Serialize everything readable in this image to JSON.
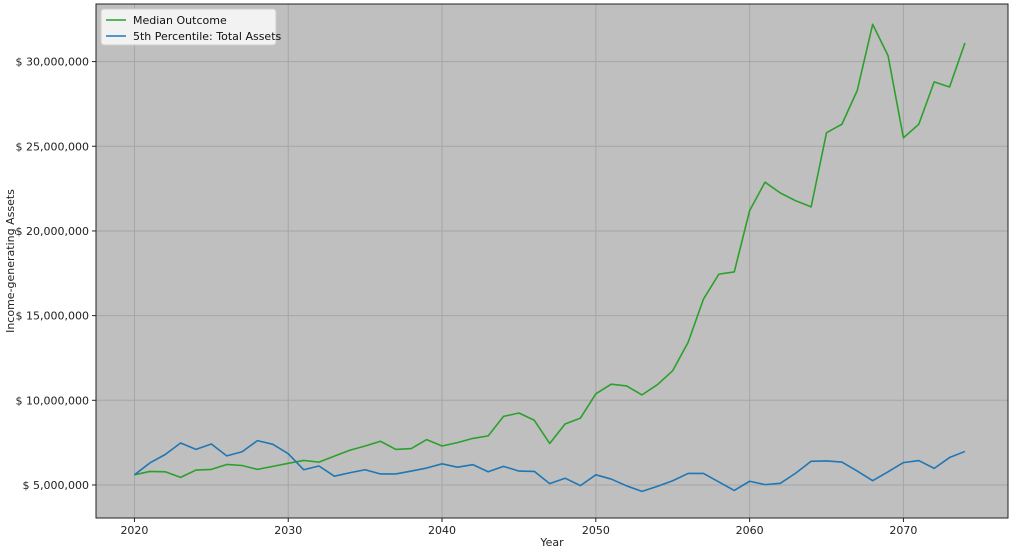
{
  "chart_data": {
    "type": "line",
    "title": "",
    "xlabel": "Year",
    "ylabel": "Income-generating Assets",
    "xlim": [
      2017.5,
      2076.8
    ],
    "ylim": [
      3050000,
      33400000
    ],
    "xticks": [
      2020,
      2030,
      2040,
      2050,
      2060,
      2070
    ],
    "xtick_labels": [
      "2020",
      "2030",
      "2040",
      "2050",
      "2060",
      "2070"
    ],
    "yticks": [
      5000000,
      10000000,
      15000000,
      20000000,
      25000000,
      30000000
    ],
    "ytick_labels": [
      "$ 5,000,000",
      "$ 10,000,000",
      "$ 15,000,000",
      "$ 20,000,000",
      "$ 25,000,000",
      "$ 30,000,000"
    ],
    "grid": true,
    "legend_position": "top-left",
    "background_color": "#bfbfbf",
    "x": [
      2020,
      2021,
      2022,
      2023,
      2024,
      2025,
      2026,
      2027,
      2028,
      2029,
      2030,
      2031,
      2032,
      2033,
      2034,
      2035,
      2036,
      2037,
      2038,
      2039,
      2040,
      2041,
      2042,
      2043,
      2044,
      2045,
      2046,
      2047,
      2048,
      2049,
      2050,
      2051,
      2052,
      2053,
      2054,
      2055,
      2056,
      2057,
      2058,
      2059,
      2060,
      2061,
      2062,
      2063,
      2064,
      2065,
      2066,
      2067,
      2068,
      2069,
      2070,
      2071,
      2072,
      2073,
      2074
    ],
    "series": [
      {
        "name": "Median Outcome",
        "color": "#2ca02c",
        "values": [
          5600000,
          5800000,
          5780000,
          5450000,
          5880000,
          5920000,
          6210000,
          6150000,
          5920000,
          6100000,
          6280000,
          6450000,
          6350000,
          6700000,
          7050000,
          7300000,
          7580000,
          7100000,
          7150000,
          7680000,
          7300000,
          7500000,
          7750000,
          7900000,
          9050000,
          9250000,
          8820000,
          7450000,
          8600000,
          8950000,
          10380000,
          10950000,
          10850000,
          10320000,
          10920000,
          11750000,
          13420000,
          15980000,
          17450000,
          17580000,
          21200000,
          22880000,
          22240000,
          21780000,
          21420000,
          25800000,
          26300000,
          28300000,
          32200000,
          30350000,
          25500000,
          26300000,
          28800000,
          28500000,
          31100000
        ]
      },
      {
        "name": "5th Percentile: Total Assets",
        "color": "#1f77b4",
        "values": [
          5600000,
          6300000,
          6800000,
          7480000,
          7100000,
          7420000,
          6720000,
          6960000,
          7620000,
          7400000,
          6850000,
          5900000,
          6120000,
          5520000,
          5720000,
          5900000,
          5650000,
          5650000,
          5820000,
          6000000,
          6250000,
          6050000,
          6200000,
          5780000,
          6100000,
          5820000,
          5800000,
          5080000,
          5400000,
          4960000,
          5600000,
          5350000,
          4950000,
          4620000,
          4920000,
          5250000,
          5680000,
          5680000,
          5180000,
          4680000,
          5220000,
          5020000,
          5100000,
          5700000,
          6400000,
          6420000,
          6350000,
          5820000,
          5250000,
          5780000,
          6320000,
          6440000,
          5980000,
          6620000,
          6980000
        ]
      }
    ]
  }
}
